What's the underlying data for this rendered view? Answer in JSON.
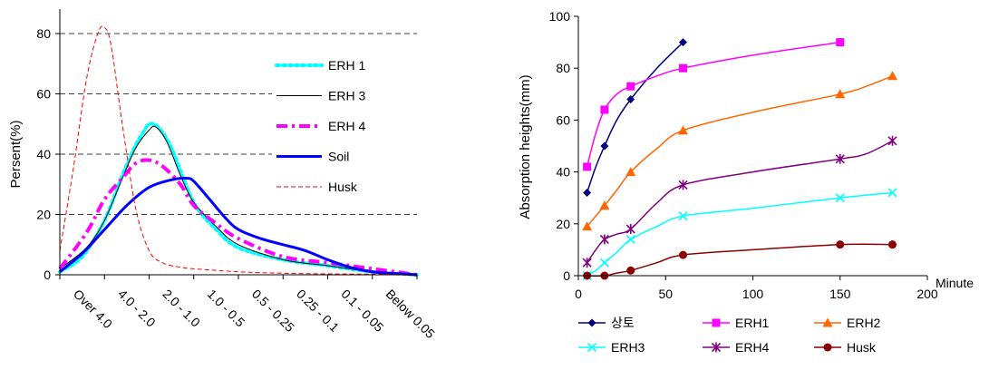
{
  "chart_data": [
    {
      "type": "line",
      "title": "",
      "xlabel": "",
      "ylabel": "Persent(%)",
      "ylim": [
        0,
        80
      ],
      "yticks": [
        0,
        20,
        40,
        60,
        80
      ],
      "grid": "horizontal dashed",
      "legend_position": "right",
      "categories": [
        "Over 4.0",
        "4.0 - 2.0",
        "2.0 - 1.0",
        "1.0 - 0.5",
        "0.5 - 0.25",
        "0.25 - 0.1",
        "0.1 - 0.05",
        "Below 0.05"
      ],
      "series": [
        {
          "name": "ERH 1",
          "color": "#00ffff",
          "style": "dotted",
          "points": [
            [
              0,
              1
            ],
            [
              0.5,
              6
            ],
            [
              1,
              18
            ],
            [
              1.4,
              33
            ],
            [
              1.7,
              43
            ],
            [
              1.9,
              48
            ],
            [
              2,
              50
            ],
            [
              2.2,
              49
            ],
            [
              2.5,
              42
            ],
            [
              3,
              24
            ],
            [
              3.5,
              15
            ],
            [
              4,
              9
            ],
            [
              5,
              5
            ],
            [
              6,
              3
            ],
            [
              7,
              1
            ],
            [
              8,
              0
            ]
          ]
        },
        {
          "name": "ERH 3",
          "color": "#000000",
          "style": "solid-thin",
          "points": [
            [
              0,
              2
            ],
            [
              0.6,
              9
            ],
            [
              1,
              18
            ],
            [
              1.4,
              32
            ],
            [
              1.7,
              42
            ],
            [
              2,
              48
            ],
            [
              2.15,
              49
            ],
            [
              2.4,
              44
            ],
            [
              2.7,
              33
            ],
            [
              3,
              24
            ],
            [
              3.5,
              16
            ],
            [
              4,
              10
            ],
            [
              5,
              5
            ],
            [
              6,
              3
            ],
            [
              7,
              1
            ],
            [
              8,
              0
            ]
          ]
        },
        {
          "name": "ERH 4",
          "color": "#ff00ff",
          "style": "dash-dot",
          "points": [
            [
              0,
              2
            ],
            [
              0.6,
              14
            ],
            [
              1,
              25
            ],
            [
              1.4,
              32
            ],
            [
              1.7,
              37
            ],
            [
              2,
              38
            ],
            [
              2.3,
              36
            ],
            [
              2.7,
              30
            ],
            [
              3,
              23
            ],
            [
              3.5,
              17
            ],
            [
              4,
              12
            ],
            [
              5,
              6
            ],
            [
              6,
              4
            ],
            [
              7,
              2
            ],
            [
              8,
              0
            ]
          ]
        },
        {
          "name": "Soil",
          "color": "#0000ff",
          "style": "solid-thick",
          "points": [
            [
              0,
              1
            ],
            [
              0.5,
              7
            ],
            [
              1,
              15
            ],
            [
              1.5,
              23
            ],
            [
              2,
              29
            ],
            [
              2.5,
              31.5
            ],
            [
              2.85,
              32
            ],
            [
              3,
              31
            ],
            [
              3.3,
              26
            ],
            [
              3.7,
              19
            ],
            [
              4,
              15
            ],
            [
              4.5,
              12
            ],
            [
              5,
              10
            ],
            [
              5.5,
              8
            ],
            [
              6,
              5
            ],
            [
              6.5,
              2.5
            ],
            [
              7,
              1
            ],
            [
              8,
              0
            ]
          ]
        },
        {
          "name": "Husk",
          "color": "#ff0000",
          "style": "dashed-thin",
          "points": [
            [
              0,
              8
            ],
            [
              0.3,
              35
            ],
            [
              0.6,
              65
            ],
            [
              0.85,
              80
            ],
            [
              1,
              82
            ],
            [
              1.15,
              76
            ],
            [
              1.4,
              50
            ],
            [
              1.7,
              22
            ],
            [
              2,
              8
            ],
            [
              2.3,
              4
            ],
            [
              2.7,
              2.5
            ],
            [
              3,
              2
            ],
            [
              4,
              1
            ],
            [
              5,
              0.5
            ],
            [
              6,
              0.3
            ],
            [
              7,
              0.2
            ],
            [
              8,
              0
            ]
          ]
        }
      ]
    },
    {
      "type": "line",
      "title": "",
      "xlabel": "Minute",
      "ylabel": "Absorption heights(mm)",
      "xlim": [
        0,
        200
      ],
      "ylim": [
        0,
        100
      ],
      "xticks": [
        0,
        50,
        100,
        150,
        200
      ],
      "yticks": [
        0,
        20,
        40,
        60,
        80,
        100
      ],
      "grid": "off",
      "legend_position": "bottom",
      "series": [
        {
          "name": "상토",
          "color": "#000080",
          "marker": "diamond",
          "points": [
            [
              5,
              32
            ],
            [
              15,
              50
            ],
            [
              30,
              68
            ],
            [
              60,
              90
            ]
          ],
          "smooth": [
            [
              5,
              32
            ],
            [
              10,
              42
            ],
            [
              15,
              50
            ],
            [
              22,
              60
            ],
            [
              30,
              68
            ],
            [
              45,
              80
            ],
            [
              60,
              90
            ]
          ]
        },
        {
          "name": "ERH1",
          "color": "#ff00ff",
          "marker": "square",
          "points": [
            [
              5,
              42
            ],
            [
              15,
              64
            ],
            [
              30,
              73
            ],
            [
              60,
              80
            ],
            [
              150,
              90
            ]
          ],
          "smooth": [
            [
              5,
              42
            ],
            [
              10,
              55
            ],
            [
              15,
              64
            ],
            [
              22,
              70
            ],
            [
              30,
              73
            ],
            [
              45,
              77
            ],
            [
              60,
              80
            ],
            [
              100,
              85
            ],
            [
              150,
              90
            ]
          ]
        },
        {
          "name": "ERH2",
          "color": "#ff6600",
          "marker": "triangle",
          "points": [
            [
              5,
              19
            ],
            [
              15,
              27
            ],
            [
              30,
              40
            ],
            [
              60,
              56
            ],
            [
              150,
              70
            ],
            [
              180,
              77
            ]
          ],
          "smooth": [
            [
              5,
              19
            ],
            [
              10,
              23
            ],
            [
              15,
              27
            ],
            [
              22,
              33
            ],
            [
              30,
              40
            ],
            [
              45,
              49
            ],
            [
              60,
              56
            ],
            [
              100,
              63
            ],
            [
              150,
              70
            ],
            [
              165,
              73
            ],
            [
              180,
              77
            ]
          ]
        },
        {
          "name": "ERH3",
          "color": "#00ffff",
          "marker": "x",
          "points": [
            [
              5,
              0
            ],
            [
              15,
              5
            ],
            [
              30,
              14
            ],
            [
              60,
              23
            ],
            [
              150,
              30
            ],
            [
              180,
              32
            ]
          ],
          "smooth": [
            [
              5,
              0
            ],
            [
              10,
              2
            ],
            [
              15,
              5
            ],
            [
              22,
              9
            ],
            [
              30,
              14
            ],
            [
              45,
              19
            ],
            [
              60,
              23
            ],
            [
              100,
              26
            ],
            [
              150,
              30
            ],
            [
              180,
              32
            ]
          ]
        },
        {
          "name": "ERH4",
          "color": "#800080",
          "marker": "asterisk",
          "points": [
            [
              5,
              5
            ],
            [
              15,
              14
            ],
            [
              30,
              18
            ],
            [
              60,
              35
            ],
            [
              150,
              45
            ],
            [
              180,
              52
            ]
          ],
          "smooth": [
            [
              5,
              5
            ],
            [
              10,
              10
            ],
            [
              15,
              14
            ],
            [
              22,
              16
            ],
            [
              30,
              18
            ],
            [
              45,
              28
            ],
            [
              60,
              35
            ],
            [
              100,
              40
            ],
            [
              150,
              45
            ],
            [
              165,
              47
            ],
            [
              180,
              52
            ]
          ]
        },
        {
          "name": "Husk",
          "color": "#8b0000",
          "marker": "circle",
          "points": [
            [
              5,
              0
            ],
            [
              15,
              0
            ],
            [
              30,
              2
            ],
            [
              60,
              8
            ],
            [
              150,
              12
            ],
            [
              180,
              12
            ]
          ],
          "smooth": [
            [
              5,
              0
            ],
            [
              15,
              0
            ],
            [
              22,
              1
            ],
            [
              30,
              2
            ],
            [
              45,
              5
            ],
            [
              60,
              8
            ],
            [
              100,
              10
            ],
            [
              150,
              12
            ],
            [
              180,
              12
            ]
          ]
        }
      ]
    }
  ]
}
